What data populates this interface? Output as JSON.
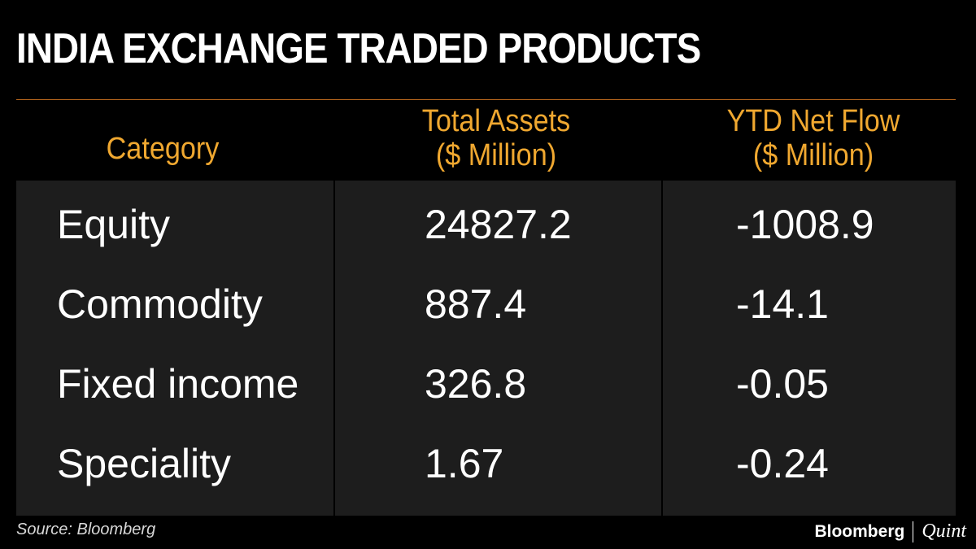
{
  "title": "INDIA EXCHANGE TRADED PRODUCTS",
  "headers": {
    "category": "Category",
    "assets_line1": "Total Assets",
    "assets_line2": "($ Million)",
    "flow_line1": "YTD Net Flow",
    "flow_line2": "($ Million)"
  },
  "footer": {
    "source": "Source: Bloomberg",
    "logo_brand": "Bloomberg",
    "logo_suffix": "Quint"
  },
  "colors": {
    "background": "#000000",
    "panel": "#1d1d1d",
    "header_text": "#f0a830",
    "rule": "#b5651d",
    "body_text": "#ffffff"
  },
  "chart_data": {
    "type": "table",
    "title": "INDIA EXCHANGE TRADED PRODUCTS",
    "columns": [
      "Category",
      "Total Assets ($ Million)",
      "YTD Net Flow ($ Million)"
    ],
    "rows": [
      {
        "category": "Equity",
        "total_assets": "24827.2",
        "ytd_net_flow": "-1008.9"
      },
      {
        "category": "Commodity",
        "total_assets": "887.4",
        "ytd_net_flow": "-14.1"
      },
      {
        "category": "Fixed income",
        "total_assets": "326.8",
        "ytd_net_flow": "-0.05"
      },
      {
        "category": "Speciality",
        "total_assets": "1.67",
        "ytd_net_flow": "-0.24"
      }
    ]
  }
}
